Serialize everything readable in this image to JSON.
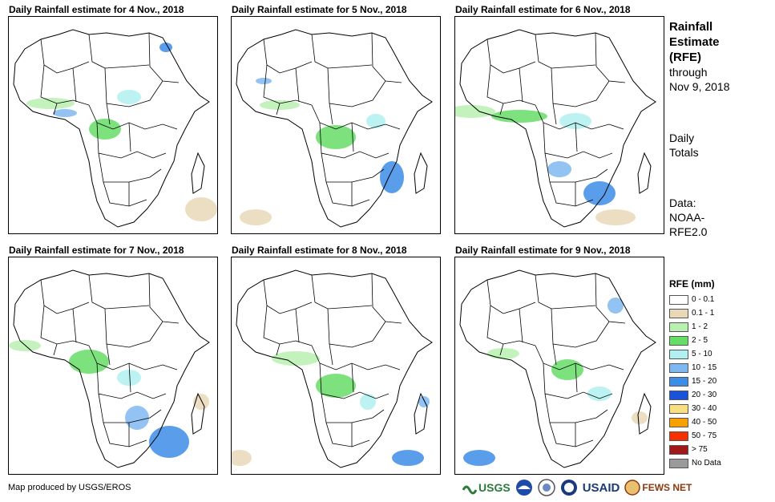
{
  "panels": [
    {
      "title": "Daily Rainfall estimate for 4 Nov., 2018"
    },
    {
      "title": "Daily Rainfall estimate for 5 Nov., 2018"
    },
    {
      "title": "Daily Rainfall estimate for 6 Nov., 2018"
    },
    {
      "title": "Daily Rainfall estimate for 7 Nov., 2018"
    },
    {
      "title": "Daily Rainfall estimate for 8 Nov., 2018"
    },
    {
      "title": "Daily Rainfall estimate for 9 Nov., 2018"
    }
  ],
  "sidebar": {
    "heading1": "Rainfall",
    "heading2": "Estimate",
    "heading3": "(RFE)",
    "through1": "through",
    "through2": "Nov 9, 2018",
    "totals1": "Daily",
    "totals2": "Totals",
    "data1": "Data:",
    "data2": "NOAA-",
    "data3": "RFE2.0"
  },
  "legend": {
    "title": "RFE (mm)",
    "items": [
      {
        "label": "0 - 0.1",
        "color": "#ffffff"
      },
      {
        "label": "0.1 - 1",
        "color": "#e8d8b8"
      },
      {
        "label": "1 - 2",
        "color": "#b8f0b0"
      },
      {
        "label": "2 - 5",
        "color": "#66dd66"
      },
      {
        "label": "5 - 10",
        "color": "#b0f0f0"
      },
      {
        "label": "10 - 15",
        "color": "#7fb8f0"
      },
      {
        "label": "15 - 20",
        "color": "#3c8ce8"
      },
      {
        "label": "20 - 30",
        "color": "#1a52d8"
      },
      {
        "label": "30 - 40",
        "color": "#f8e080"
      },
      {
        "label": "40 - 50",
        "color": "#f8a000"
      },
      {
        "label": "50 - 75",
        "color": "#f83000"
      },
      {
        "label": "> 75",
        "color": "#a01818"
      },
      {
        "label": "No Data",
        "color": "#9a9a9a"
      }
    ]
  },
  "footer": {
    "credit": "Map produced by USGS/EROS",
    "logo_usgs": "USGS",
    "logo_usaid": "USAID",
    "logo_fewsnet": "FEWS NET"
  }
}
